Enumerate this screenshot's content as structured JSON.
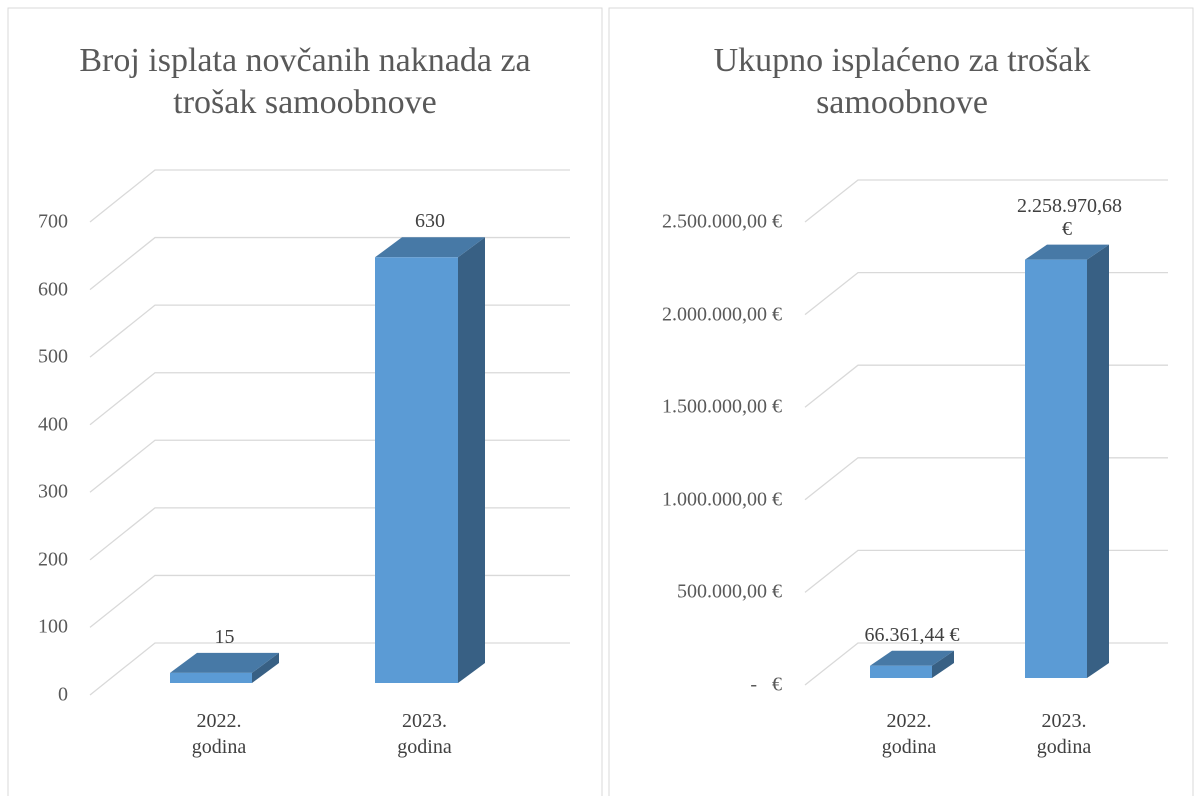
{
  "chart_data": [
    {
      "type": "bar",
      "title": "Broj isplata novčanih naknada za trošak samoobnove",
      "categories": [
        "2022. godina",
        "2023. godina"
      ],
      "values": [
        15,
        630
      ],
      "color": "#5b9bd5",
      "ylim": [
        0,
        700
      ],
      "yticks": [
        0,
        100,
        200,
        300,
        400,
        500,
        600,
        700
      ],
      "grid": true
    },
    {
      "type": "bar",
      "title": "Ukupno isplaćeno za trošak samoobnove",
      "categories": [
        "2022. godina",
        "2023. godina"
      ],
      "values": [
        66361.44,
        2258970.68
      ],
      "value_labels": [
        "66.361,44 €",
        "2.258.970,68 €"
      ],
      "color": "#5b9bd5",
      "ylim": [
        0,
        2500000
      ],
      "yticks": [
        {
          "value": 0,
          "label": "-   €"
        },
        {
          "value": 500000,
          "label": "500.000,00 €"
        },
        {
          "value": 1000000,
          "label": "1.000.000,00 €"
        },
        {
          "value": 1500000,
          "label": "1.500.000,00 €"
        },
        {
          "value": 2000000,
          "label": "2.000.000,00 €"
        },
        {
          "value": 2500000,
          "label": "2.500.000,00 €"
        }
      ],
      "grid": true
    }
  ]
}
